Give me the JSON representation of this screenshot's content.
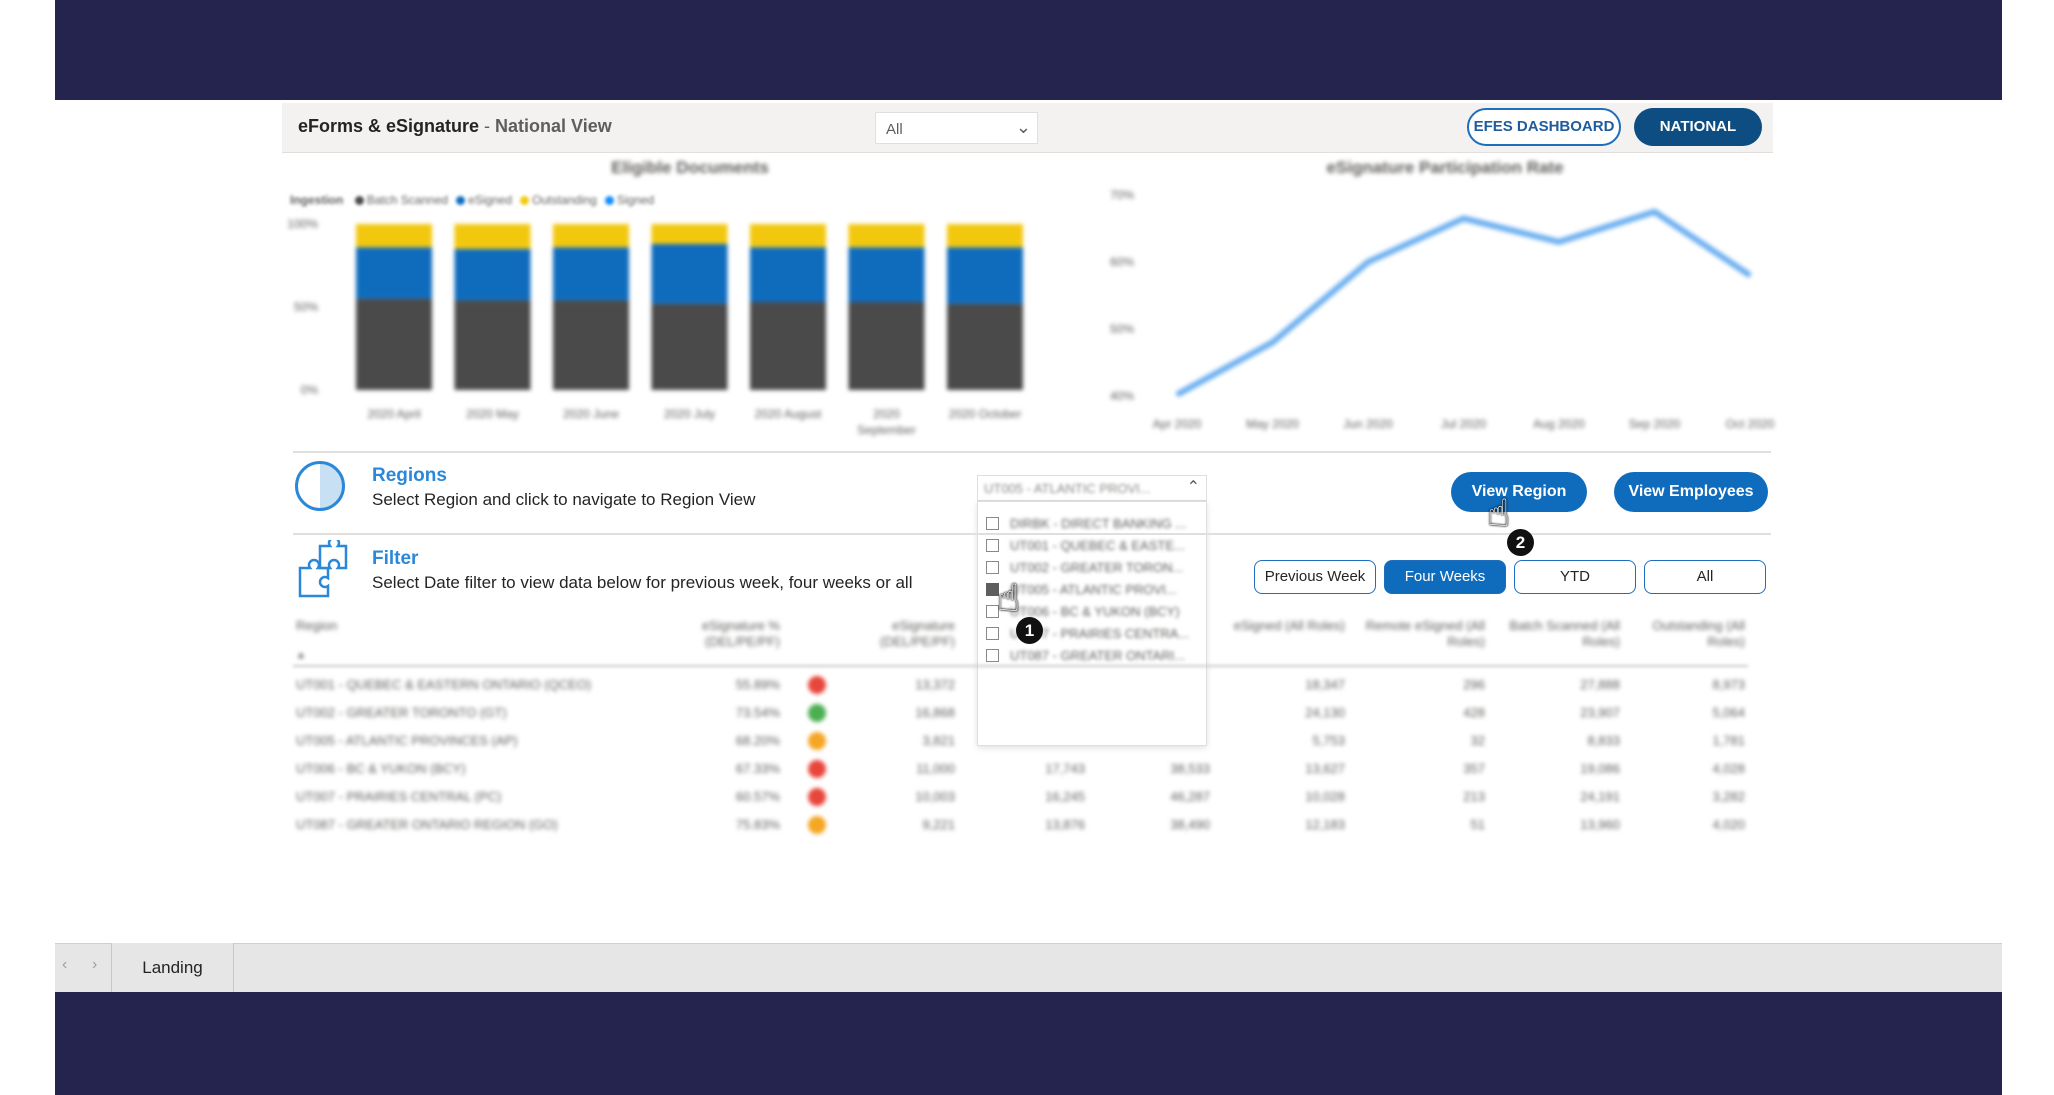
{
  "header": {
    "title_strong": "eForms & eSignature",
    "title_sep": " - ",
    "title_sub": "National View",
    "select_value": "All",
    "btn_efes": "EFES DASHBOARD",
    "btn_national": "NATIONAL"
  },
  "charts": [
    {
      "type": "bar",
      "title": "Eligible Documents",
      "legend_title": "Ingestion",
      "legend": [
        {
          "name": "Batch Scanned",
          "color": "#4a4a4a"
        },
        {
          "name": "eSigned",
          "color": "#0f6cbd"
        },
        {
          "name": "Outstanding",
          "color": "#f2c80f"
        },
        {
          "name": "Signed",
          "color": "#118dff"
        }
      ],
      "categories": [
        "2020 April",
        "2020 May",
        "2020 June",
        "2020 July",
        "2020 August",
        "2020 September",
        "2020 October"
      ],
      "yticks": [
        "100%",
        "50%",
        "0%"
      ],
      "series": [
        {
          "name": "Batch Scanned",
          "color": "#4a4a4a",
          "values": [
            55,
            54,
            54,
            52,
            53,
            53,
            52
          ]
        },
        {
          "name": "eSigned",
          "color": "#0f6cbd",
          "values": [
            31,
            31,
            32,
            36,
            33,
            33,
            34
          ]
        },
        {
          "name": "Outstanding",
          "color": "#f2c80f",
          "values": [
            14,
            15,
            14,
            12,
            14,
            14,
            14
          ]
        }
      ],
      "ylim": [
        0,
        100
      ]
    },
    {
      "type": "line",
      "title": "eSignature Participation Rate",
      "categories": [
        "Apr 2020",
        "May 2020",
        "Jun 2020",
        "Jul 2020",
        "Aug 2020",
        "Sep 2020",
        "Oct 2020"
      ],
      "yticks": [
        "70%",
        "60%",
        "50%",
        "40%"
      ],
      "series": [
        {
          "color": "#6aaef0",
          "values": [
            40.2,
            48,
            60,
            66.5,
            63,
            67.5,
            58
          ]
        }
      ],
      "ylim": [
        40,
        70
      ]
    }
  ],
  "regions": {
    "heading": "Regions",
    "desc": "Select Region and click to navigate to Region View",
    "select_value": "UT005 - ATLANTIC PROVI...",
    "dropdown": [
      {
        "label": "DIRBK - DIRECT BANKING ...",
        "checked": false
      },
      {
        "label": "UT001 - QUEBEC & EASTE...",
        "checked": false
      },
      {
        "label": "UT002 - GREATER TORON...",
        "checked": false
      },
      {
        "label": "UT005 - ATLANTIC PROVI...",
        "checked": true
      },
      {
        "label": "UT006 - BC & YUKON (BCY)",
        "checked": false
      },
      {
        "label": "UT007 - PRAIRIES CENTRA...",
        "checked": false
      },
      {
        "label": "UT087 - GREATER ONTARI...",
        "checked": false
      }
    ],
    "btn_view_region": "View Region",
    "btn_view_employees": "View Employees"
  },
  "filter": {
    "heading": "Filter",
    "desc": "Select Date filter to view data below for previous week, four weeks or all",
    "buttons": [
      "Previous Week",
      "Four Weeks",
      "YTD",
      "All"
    ],
    "active": "Four Weeks"
  },
  "table": {
    "headers": [
      "Region",
      "eSignature % (DEL/PE/PF)",
      "eSignature (DEL/PE/PF)",
      "eSigned (All Roles)",
      "Remote eSigned (All Roles)",
      "Batch Scanned (All Roles)",
      "Outstanding (All Roles)"
    ],
    "sort_indicator": "▲",
    "rows": [
      {
        "region": "UT001 - QUEBEC & EASTERN ONTARIO (QCEO)",
        "pct": "55.89%",
        "status": "#e8463c",
        "esig": "13,372",
        "c4": "",
        "c5": "",
        "esigned": "18,347",
        "remote": "296",
        "batch": "27,888",
        "outstanding": "8,973"
      },
      {
        "region": "UT002 - GREATER TORONTO (GT)",
        "pct": "73.54%",
        "status": "#4caf50",
        "esig": "16,868",
        "c4": "",
        "c5": "",
        "esigned": "24,130",
        "remote": "428",
        "batch": "23,907",
        "outstanding": "5,064"
      },
      {
        "region": "UT005 - ATLANTIC PROVINCES (AP)",
        "pct": "68.20%",
        "status": "#f5a623",
        "esig": "3,821",
        "c4": "",
        "c5": "",
        "esigned": "5,753",
        "remote": "32",
        "batch": "8,833",
        "outstanding": "1,781"
      },
      {
        "region": "UT006 - BC & YUKON (BCY)",
        "pct": "67.33%",
        "status": "#e8463c",
        "esig": "11,000",
        "c4": "17,743",
        "c5": "38,533",
        "esigned": "13,627",
        "remote": "357",
        "batch": "19,086",
        "outstanding": "4,028"
      },
      {
        "region": "UT007 - PRAIRIES CENTRAL (PC)",
        "pct": "60.57%",
        "status": "#e8463c",
        "esig": "10,003",
        "c4": "16,245",
        "c5": "46,287",
        "esigned": "10,028",
        "remote": "213",
        "batch": "24,191",
        "outstanding": "3,282"
      },
      {
        "region": "UT087 - GREATER ONTARIO REGION (GO)",
        "pct": "75.83%",
        "status": "#f5a623",
        "esig": "9,221",
        "c4": "13,876",
        "c5": "38,490",
        "esigned": "12,183",
        "remote": "51",
        "batch": "13,960",
        "outstanding": "4,020"
      }
    ]
  },
  "markers": {
    "one": "1",
    "two": "2"
  },
  "tabs": {
    "prev": "‹",
    "next": "›",
    "active": "Landing"
  }
}
